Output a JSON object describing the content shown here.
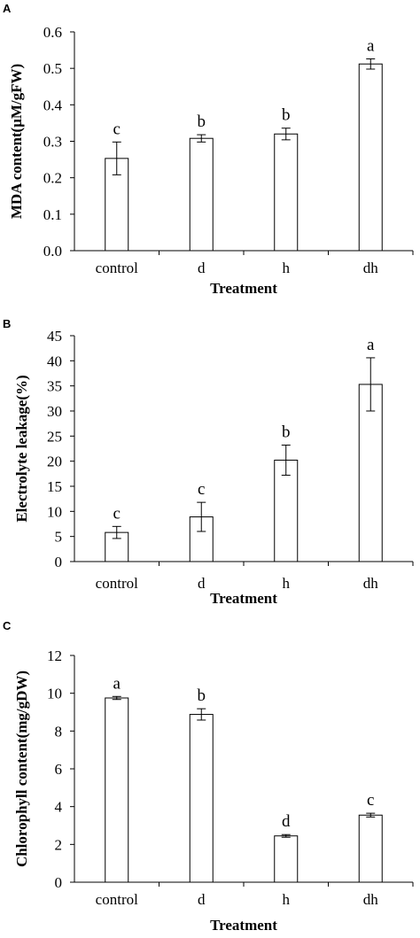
{
  "chart_data": [
    {
      "panel": "A",
      "type": "bar",
      "categories": [
        "control",
        "d",
        "h",
        "dh"
      ],
      "values": [
        0.253,
        0.308,
        0.32,
        0.512
      ],
      "errors": [
        0.045,
        0.01,
        0.016,
        0.014
      ],
      "significance": [
        "c",
        "b",
        "b",
        "a"
      ],
      "xlabel": "Treatment",
      "ylabel": "MDA content(μM/gFW)",
      "ylim": [
        0,
        0.6
      ],
      "yticks": [
        "0.0",
        "0.1",
        "0.2",
        "0.3",
        "0.4",
        "0.5",
        "0.6"
      ],
      "grid": false,
      "legend": "none"
    },
    {
      "panel": "B",
      "type": "bar",
      "categories": [
        "control",
        "d",
        "h",
        "dh"
      ],
      "values": [
        5.8,
        8.9,
        20.2,
        35.3
      ],
      "errors": [
        1.2,
        2.9,
        3.0,
        5.3
      ],
      "significance": [
        "c",
        "c",
        "b",
        "a"
      ],
      "xlabel": "Treatment",
      "ylabel": "Electrolyte leakage(%)",
      "ylim": [
        0,
        45
      ],
      "yticks": [
        "0",
        "5",
        "10",
        "15",
        "20",
        "25",
        "30",
        "35",
        "40",
        "45"
      ],
      "grid": false,
      "legend": "none"
    },
    {
      "panel": "C",
      "type": "bar",
      "categories": [
        "control",
        "d",
        "h",
        "dh"
      ],
      "values": [
        9.75,
        8.88,
        2.45,
        3.55
      ],
      "errors": [
        0.08,
        0.3,
        0.07,
        0.1
      ],
      "significance": [
        "a",
        "b",
        "d",
        "c"
      ],
      "xlabel": "Treatment",
      "ylabel": "Chlorophyll  content(mg/gDW)",
      "ylim": [
        0,
        12
      ],
      "yticks": [
        "0",
        "2",
        "4",
        "6",
        "8",
        "10",
        "12"
      ],
      "grid": false,
      "legend": "none"
    }
  ]
}
